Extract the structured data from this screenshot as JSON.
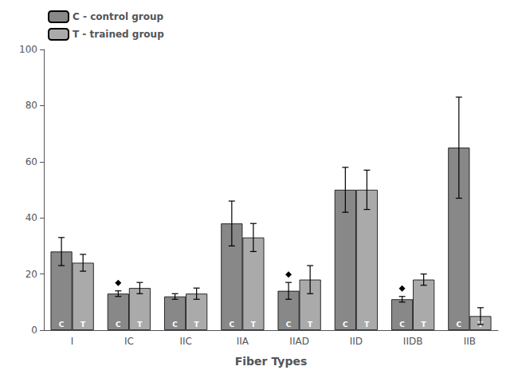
{
  "chart_data": {
    "type": "bar",
    "xlabel": "Fiber Types",
    "categories": [
      "I",
      "IC",
      "IIC",
      "IIA",
      "IIAD",
      "IID",
      "IIDB",
      "IIB"
    ],
    "series": [
      {
        "name": "C - control group",
        "bar_label": "C",
        "color": "#888888",
        "values": [
          28,
          13,
          12,
          38,
          14,
          50,
          11,
          65
        ],
        "errors": [
          5,
          1,
          1,
          8,
          3,
          8,
          1,
          18
        ],
        "significant": [
          false,
          true,
          false,
          false,
          true,
          false,
          true,
          false
        ]
      },
      {
        "name": "T - trained group",
        "bar_label": "T",
        "color": "#aaaaaa",
        "values": [
          24,
          15,
          13,
          33,
          18,
          50,
          18,
          5
        ],
        "errors": [
          3,
          2,
          2,
          5,
          5,
          7,
          2,
          3
        ]
      }
    ],
    "ylim": [
      0,
      100
    ],
    "yticks": [
      0,
      20,
      40,
      60,
      80,
      100
    ],
    "grid": false,
    "legend": "upper left"
  }
}
